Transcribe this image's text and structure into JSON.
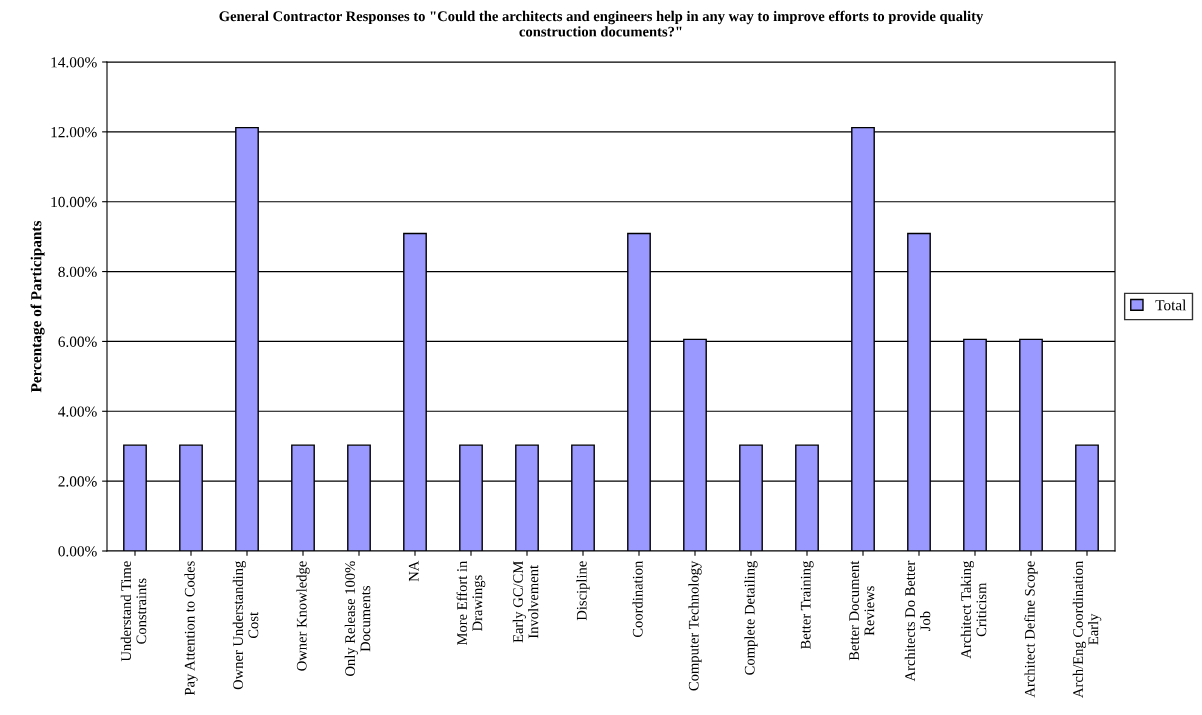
{
  "chart_data": {
    "type": "bar",
    "title": "General Contractor Responses to \"Could the architects and engineers help in any way to improve efforts to provide quality\nconstruction documents?\"",
    "ylabel": "Percentage of Participants",
    "categories": [
      "Understand Time\nConstraints",
      "Pay Attention to Codes",
      "Owner Understanding\nCost",
      "Owner Knowledge",
      "Only Release 100%\nDocuments",
      "NA",
      "More Effort in\nDrawings",
      "Early GC/CM\nInvolvement",
      "Discipline",
      "Coordination",
      "Computer Technology",
      "Complete Detailing",
      "Better Training",
      "Better Document\nReviews",
      "Architects Do Better\nJob",
      "Architect Taking\nCriticism",
      "Architect Define Scope",
      "Arch/Eng Coordination\nEarly"
    ],
    "series": [
      {
        "name": "Total",
        "color": "#9999ff",
        "values": [
          3.03,
          3.03,
          12.12,
          3.03,
          3.03,
          9.09,
          3.03,
          3.03,
          3.03,
          9.09,
          6.06,
          3.03,
          3.03,
          12.12,
          9.09,
          6.06,
          6.06,
          3.03
        ]
      }
    ],
    "ylim": [
      0,
      14
    ],
    "yticks": [
      {
        "value": 0,
        "label": "0.00%"
      },
      {
        "value": 2,
        "label": "2.00%"
      },
      {
        "value": 4,
        "label": "4.00%"
      },
      {
        "value": 6,
        "label": "6.00%"
      },
      {
        "value": 8,
        "label": "8.00%"
      },
      {
        "value": 10,
        "label": "10.00%"
      },
      {
        "value": 12,
        "label": "12.00%"
      },
      {
        "value": 14,
        "label": "14.00%"
      }
    ],
    "grid": "y",
    "legend": "right"
  }
}
